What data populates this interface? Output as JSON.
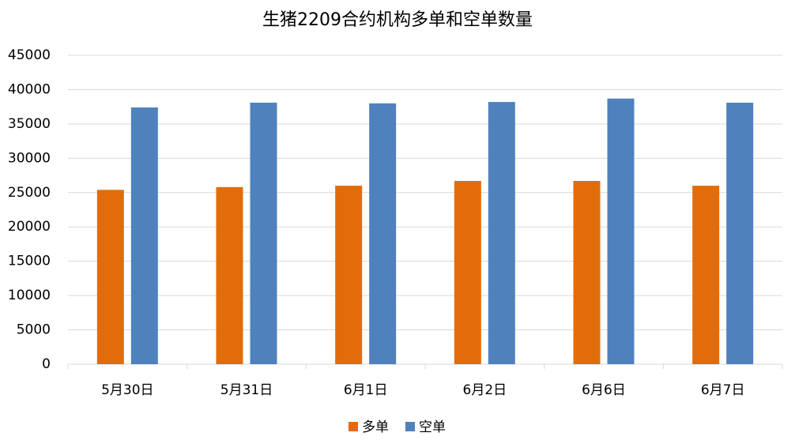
{
  "chart_data": {
    "type": "bar",
    "title": "生猪2209合约机构多单和空单数量",
    "categories": [
      "5月30日",
      "5月31日",
      "6月1日",
      "6月2日",
      "6月6日",
      "6月7日"
    ],
    "series": [
      {
        "name": "多单",
        "color": "#e36c0a",
        "values": [
          25400,
          25800,
          26000,
          26700,
          26700,
          26000
        ]
      },
      {
        "name": "空单",
        "color": "#4f81bd",
        "values": [
          37400,
          38100,
          38000,
          38200,
          38700,
          38100
        ]
      }
    ],
    "ylim": [
      0,
      45000
    ],
    "yticks": [
      0,
      5000,
      10000,
      15000,
      20000,
      25000,
      30000,
      35000,
      40000,
      45000
    ],
    "grid": true,
    "legend": "bottom"
  }
}
